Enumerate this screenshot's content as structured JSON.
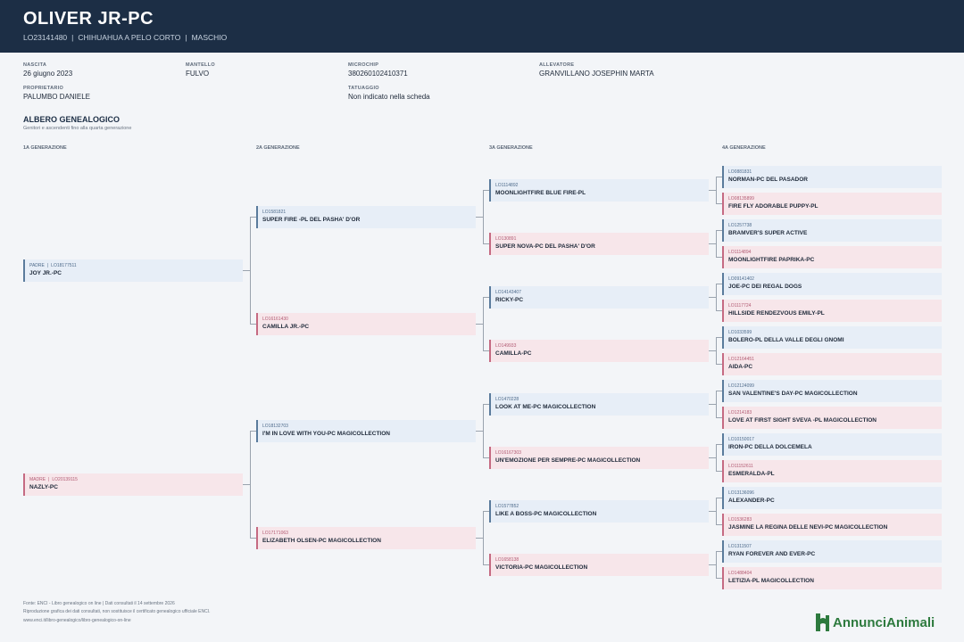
{
  "header": {
    "title": "OLIVER JR-PC",
    "registration": "LO23141480",
    "breed": "CHIHUAHUA A PELO CORTO",
    "sex": "MASCHIO",
    "separator": "|"
  },
  "details": {
    "birth": {
      "label": "NASCITA",
      "value": "26 giugno 2023"
    },
    "coat": {
      "label": "MANTELLO",
      "value": "FULVO"
    },
    "microchip": {
      "label": "MICROCHIP",
      "value": "380260102410371"
    },
    "breeder": {
      "label": "ALLEVATORE",
      "value": "GRANVILLANO JOSEPHIN MARTA"
    },
    "owner": {
      "label": "PROPRIETARIO",
      "value": "PALUMBO DANIELE"
    },
    "tattoo": {
      "label": "TATUAGGIO",
      "value": "Non indicato nella scheda"
    }
  },
  "tree": {
    "title": "ALBERO GENEALOGICO",
    "subtitle": "Genitori e ascendenti fino alla quarta generazione",
    "generations": [
      "1A GENERAZIONE",
      "2A GENERAZIONE",
      "3A GENERAZIONE",
      "4A GENERAZIONE"
    ],
    "gen1": [
      {
        "role": "PADRE",
        "code": "LO18177511",
        "name": "JOY JR.-PC",
        "sex": "m"
      },
      {
        "role": "MADRE",
        "code": "LO20139115",
        "name": "NAZLY-PC",
        "sex": "f"
      }
    ],
    "gen2": [
      {
        "code": "LO1581821",
        "name": "SUPER FIRE -PL DEL PASHA' D'OR",
        "sex": "m"
      },
      {
        "code": "LO16161430",
        "name": "CAMILLA JR.-PC",
        "sex": "f"
      },
      {
        "code": "LO18132703",
        "name": "I'M IN LOVE WITH YOU-PC MAGICOLLECTION",
        "sex": "m"
      },
      {
        "code": "LO17171063",
        "name": "ELIZABETH OLSEN-PC MAGICOLLECTION",
        "sex": "f"
      }
    ],
    "gen3": [
      {
        "code": "LO1114892",
        "name": "MOONLIGHTFIRE BLUE FIRE-PL",
        "sex": "m"
      },
      {
        "code": "LO130891",
        "name": "SUPER NOVA-PC DEL PASHA' D'OR",
        "sex": "f"
      },
      {
        "code": "LO14143407",
        "name": "RICKY-PC",
        "sex": "m"
      },
      {
        "code": "LO149933",
        "name": "CAMILLA-PC",
        "sex": "f"
      },
      {
        "code": "LO1470228",
        "name": "LOOK AT ME-PC MAGICOLLECTION",
        "sex": "m"
      },
      {
        "code": "LO16167303",
        "name": "UN'EMOZIONE PER SEMPRE-PC MAGICOLLECTION",
        "sex": "f"
      },
      {
        "code": "LO1577852",
        "name": "LIKE A BOSS-PC MAGICOLLECTION",
        "sex": "m"
      },
      {
        "code": "LO1658138",
        "name": "VICTORIA-PC MAGICOLLECTION",
        "sex": "f"
      }
    ],
    "gen4": [
      {
        "code": "LO0881831",
        "name": "NORMAN-PC DEL PASADOR",
        "sex": "m"
      },
      {
        "code": "LO08135899",
        "name": "FIRE FLY ADORABLE PUPPY-PL",
        "sex": "f"
      },
      {
        "code": "LO1257738",
        "name": "BRAMVER'S SUPER ACTIVE",
        "sex": "m"
      },
      {
        "code": "LO1114894",
        "name": "MOONLIGHTFIRE PAPRIKA-PC",
        "sex": "f"
      },
      {
        "code": "LO09141402",
        "name": "JOE-PC DEI REGAL DOGS",
        "sex": "m"
      },
      {
        "code": "LO1117724",
        "name": "HILLSIDE RENDEZVOUS EMILY-PL",
        "sex": "f"
      },
      {
        "code": "LO1033599",
        "name": "BOLERO-PL DELLA VALLE DEGLI GNOMI",
        "sex": "m"
      },
      {
        "code": "LO12164451",
        "name": "AIDA-PC",
        "sex": "f"
      },
      {
        "code": "LO12124099",
        "name": "SAN VALENTINE'S DAY-PC MAGICOLLECTION",
        "sex": "m"
      },
      {
        "code": "LO1214183",
        "name": "LOVE AT FIRST SIGHT SVEVA -PL MAGICOLLECTION",
        "sex": "f"
      },
      {
        "code": "LO10150017",
        "name": "IRON-PC DELLA DOLCEMELA",
        "sex": "m"
      },
      {
        "code": "LO11152611",
        "name": "ESMERALDA-PL",
        "sex": "f"
      },
      {
        "code": "LO13136096",
        "name": "ALEXANDER-PC",
        "sex": "m"
      },
      {
        "code": "LO1536283",
        "name": "JASMINE LA REGINA DELLE NEVI-PC MAGICOLLECTION",
        "sex": "f"
      },
      {
        "code": "LO1311507",
        "name": "RYAN FOREVER AND EVER-PC",
        "sex": "m"
      },
      {
        "code": "LO1488404",
        "name": "LETIZIA-PL MAGICOLLECTION",
        "sex": "f"
      }
    ]
  },
  "footer": {
    "source": "Fonte: ENCI - Libro genealogico on line | Dati consultati il 14 settembre 2026",
    "disclaimer": "Riproduzione grafica dei dati consultati, non sostituisce il certificato genealogico ufficiale ENCI.",
    "link": "www.enci.it/libro-genealogico/libro-genealogico-on-line"
  },
  "brand": {
    "name": "AnnunciAnimali",
    "icon": "dog-logo-icon",
    "color": "#2d7a3e"
  }
}
